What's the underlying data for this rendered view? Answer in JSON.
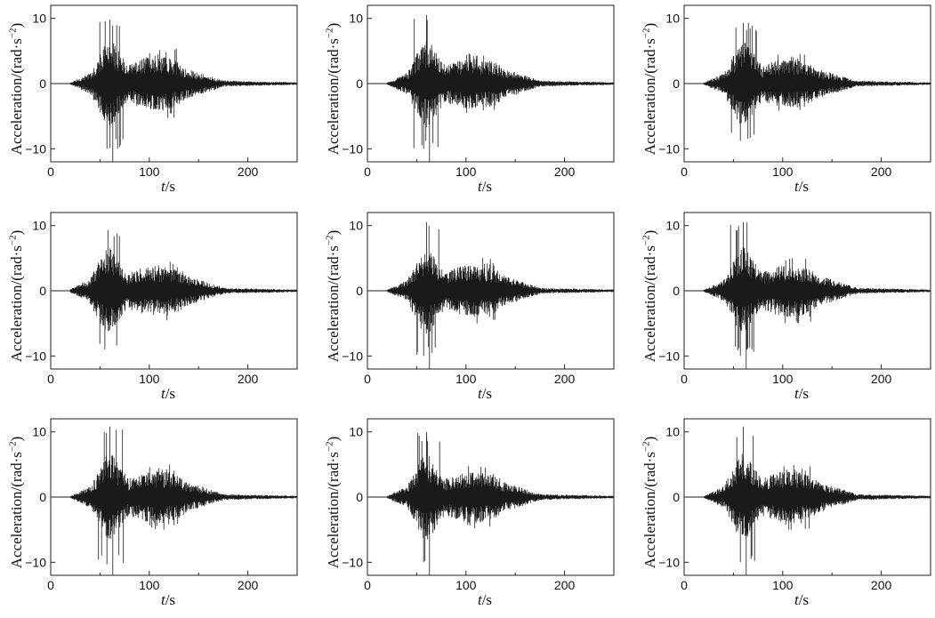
{
  "colors": {
    "trace": "#1a1a1a",
    "axis": "#222222",
    "background": "#ffffff"
  },
  "chart_data": [
    {
      "type": "line",
      "panel": 1,
      "xlabel_var": "t",
      "xlabel_unit": "/s",
      "ylabel": "Acceleration/(rad·s",
      "ylabel_exp": "−2",
      "ylabel_close": ")",
      "xlim": [
        0,
        250
      ],
      "ylim": [
        -12,
        12
      ],
      "xticks": [
        "0",
        "100",
        "200"
      ],
      "yticks": [
        "10",
        "0",
        "−10"
      ],
      "grid": false,
      "envelope": {
        "t_start": 20,
        "t_end": 250,
        "peak_t": 60,
        "peak_pos": 9.8,
        "peak_neg": -10.0,
        "secondary_t": 115,
        "secondary_amp": 4.5,
        "spike_t": 63,
        "spike_val": -12.0
      }
    },
    {
      "type": "line",
      "panel": 2,
      "xlabel_var": "t",
      "xlabel_unit": "/s",
      "ylabel": "Acceleration/(rad·s",
      "ylabel_exp": "−2",
      "ylabel_close": ")",
      "xlim": [
        0,
        250
      ],
      "ylim": [
        -12,
        12
      ],
      "xticks": [
        "0",
        "100",
        "200"
      ],
      "yticks": [
        "10",
        "0",
        "−10"
      ],
      "grid": false,
      "envelope": {
        "t_start": 20,
        "t_end": 250,
        "peak_t": 60,
        "peak_pos": 10.5,
        "peak_neg": -10.0,
        "secondary_t": 115,
        "secondary_amp": 4.0,
        "spike_t": 63,
        "spike_val": -12.0
      }
    },
    {
      "type": "line",
      "panel": 3,
      "xlabel_var": "t",
      "xlabel_unit": "/s",
      "ylabel": "Acceleration/(rad·s",
      "ylabel_exp": "−2",
      "ylabel_close": ")",
      "xlim": [
        0,
        250
      ],
      "ylim": [
        -12,
        12
      ],
      "xticks": [
        "0",
        "100",
        "200"
      ],
      "yticks": [
        "10",
        "0",
        "−10"
      ],
      "grid": false,
      "envelope": {
        "t_start": 20,
        "t_end": 250,
        "peak_t": 60,
        "peak_pos": 9.3,
        "peak_neg": -8.8,
        "secondary_t": 110,
        "secondary_amp": 3.8,
        "spike_t": null,
        "spike_val": null
      }
    },
    {
      "type": "line",
      "panel": 4,
      "xlabel_var": "t",
      "xlabel_unit": "/s",
      "ylabel": "Acceleration/(rad·s",
      "ylabel_exp": "−2",
      "ylabel_close": ")",
      "xlim": [
        0,
        250
      ],
      "ylim": [
        -12,
        12
      ],
      "xticks": [
        "0",
        "100",
        "200"
      ],
      "yticks": [
        "10",
        "0",
        "−10"
      ],
      "grid": false,
      "envelope": {
        "t_start": 20,
        "t_end": 250,
        "peak_t": 58,
        "peak_pos": 9.3,
        "peak_neg": -9.0,
        "secondary_t": 115,
        "secondary_amp": 3.8,
        "spike_t": null,
        "spike_val": null
      }
    },
    {
      "type": "line",
      "panel": 5,
      "xlabel_var": "t",
      "xlabel_unit": "/s",
      "ylabel": "Acceleration/(rad·s",
      "ylabel_exp": "−2",
      "ylabel_close": ")",
      "xlim": [
        0,
        250
      ],
      "ylim": [
        -12,
        12
      ],
      "xticks": [
        "0",
        "100",
        "200"
      ],
      "yticks": [
        "10",
        "0",
        "−10"
      ],
      "grid": false,
      "envelope": {
        "t_start": 20,
        "t_end": 250,
        "peak_t": 60,
        "peak_pos": 10.5,
        "peak_neg": -10.0,
        "secondary_t": 115,
        "secondary_amp": 4.2,
        "spike_t": 63,
        "spike_val": -12.0
      }
    },
    {
      "type": "line",
      "panel": 6,
      "xlabel_var": "t",
      "xlabel_unit": "/s",
      "ylabel": "Acceleration/(rad·s",
      "ylabel_exp": "−2",
      "ylabel_close": ")",
      "xlim": [
        0,
        250
      ],
      "ylim": [
        -12,
        12
      ],
      "xticks": [
        "0",
        "100",
        "200"
      ],
      "yticks": [
        "10",
        "0",
        "−10"
      ],
      "grid": false,
      "envelope": {
        "t_start": 20,
        "t_end": 250,
        "peak_t": 60,
        "peak_pos": 10.5,
        "peak_neg": -10.0,
        "secondary_t": 115,
        "secondary_amp": 4.2,
        "spike_t": 63,
        "spike_val": -12.0
      }
    },
    {
      "type": "line",
      "panel": 7,
      "xlabel_var": "t",
      "xlabel_unit": "/s",
      "ylabel": "Acceleration/(rad·s",
      "ylabel_exp": "−2",
      "ylabel_close": ")",
      "xlim": [
        0,
        250
      ],
      "ylim": [
        -12,
        12
      ],
      "xticks": [
        "0",
        "100",
        "200"
      ],
      "yticks": [
        "10",
        "0",
        "−10"
      ],
      "grid": false,
      "envelope": {
        "t_start": 20,
        "t_end": 250,
        "peak_t": 60,
        "peak_pos": 10.8,
        "peak_neg": -10.3,
        "secondary_t": 115,
        "secondary_amp": 4.2,
        "spike_t": 63,
        "spike_val": -12.0
      }
    },
    {
      "type": "line",
      "panel": 8,
      "xlabel_var": "t",
      "xlabel_unit": "/s",
      "ylabel": "Acceleration/(rad·s",
      "ylabel_exp": "−2",
      "ylabel_close": ")",
      "xlim": [
        0,
        250
      ],
      "ylim": [
        -12,
        12
      ],
      "xticks": [
        "0",
        "100",
        "200"
      ],
      "yticks": [
        "10",
        "0",
        "−10"
      ],
      "grid": false,
      "envelope": {
        "t_start": 20,
        "t_end": 250,
        "peak_t": 60,
        "peak_pos": 10.0,
        "peak_neg": -10.0,
        "secondary_t": 115,
        "secondary_amp": 4.0,
        "spike_t": 63,
        "spike_val": -12.0
      }
    },
    {
      "type": "line",
      "panel": 9,
      "xlabel_var": "t",
      "xlabel_unit": "/s",
      "ylabel": "Acceleration/(rad·s",
      "ylabel_exp": "−2",
      "ylabel_close": ")",
      "xlim": [
        0,
        250
      ],
      "ylim": [
        -12,
        12
      ],
      "xticks": [
        "0",
        "100",
        "200"
      ],
      "yticks": [
        "10",
        "0",
        "−10"
      ],
      "grid": false,
      "envelope": {
        "t_start": 20,
        "t_end": 250,
        "peak_t": 60,
        "peak_pos": 10.8,
        "peak_neg": -10.0,
        "secondary_t": 115,
        "secondary_amp": 4.2,
        "spike_t": 63,
        "spike_val": -12.0
      }
    }
  ]
}
